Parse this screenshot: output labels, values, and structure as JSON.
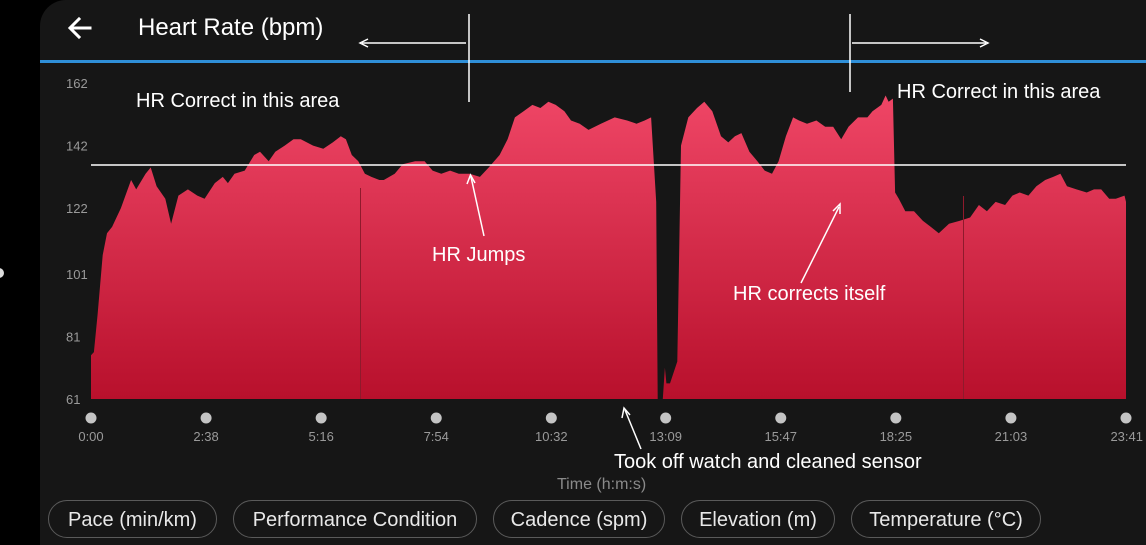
{
  "header": {
    "title": "Heart Rate (bpm)",
    "back_icon": "arrow-left-icon",
    "accent_color": "#2f8fd8"
  },
  "chart_data": {
    "type": "area",
    "x_unit": "minutes",
    "xlim": [
      0,
      1421
    ],
    "ylim": [
      61,
      162
    ],
    "yticks": [
      "162",
      "142",
      "122",
      "101",
      "81",
      "61"
    ],
    "ytick_values": [
      162,
      142,
      122,
      101,
      81,
      61
    ],
    "xticks": [
      "0:00",
      "2:38",
      "5:16",
      "7:54",
      "10:32",
      "13:09",
      "15:47",
      "18:25",
      "21:03",
      "23:41"
    ],
    "xtick_values": [
      0,
      158,
      316,
      474,
      632,
      789,
      947,
      1105,
      1263,
      1421
    ],
    "xlabel": "Time (h:m:s)",
    "fill_top": "#ef4666",
    "fill_bottom": "#b8102c",
    "reference_line_y": 135.8,
    "series": [
      {
        "values": [
          [
            0,
            75
          ],
          [
            4,
            76
          ],
          [
            9,
            88
          ],
          [
            16,
            107
          ],
          [
            22,
            114
          ],
          [
            29,
            116
          ],
          [
            41,
            122
          ],
          [
            55,
            131
          ],
          [
            62,
            128
          ],
          [
            75,
            133
          ],
          [
            82,
            135
          ],
          [
            90,
            129
          ],
          [
            102,
            125
          ],
          [
            110,
            117
          ],
          [
            120,
            126
          ],
          [
            133,
            128
          ],
          [
            146,
            126
          ],
          [
            156,
            125
          ],
          [
            170,
            130
          ],
          [
            181,
            132
          ],
          [
            188,
            130
          ],
          [
            197,
            133
          ],
          [
            211,
            134
          ],
          [
            224,
            139
          ],
          [
            232,
            140
          ],
          [
            244,
            137
          ],
          [
            253,
            140
          ],
          [
            266,
            142
          ],
          [
            278,
            144
          ],
          [
            288,
            144
          ],
          [
            305,
            142
          ],
          [
            319,
            141
          ],
          [
            332,
            143
          ],
          [
            343,
            145
          ],
          [
            350,
            144
          ],
          [
            358,
            139
          ],
          [
            367,
            137
          ],
          [
            376,
            133
          ],
          [
            385,
            132
          ],
          [
            396,
            131
          ],
          [
            402,
            131
          ],
          [
            417,
            133
          ],
          [
            428,
            136
          ],
          [
            445,
            137
          ],
          [
            458,
            137
          ],
          [
            469,
            134
          ],
          [
            481,
            133
          ],
          [
            493,
            134
          ],
          [
            505,
            133
          ],
          [
            520,
            133
          ],
          [
            534,
            132
          ],
          [
            546,
            135
          ],
          [
            561,
            139
          ],
          [
            572,
            144
          ],
          [
            582,
            151
          ],
          [
            594,
            153
          ],
          [
            606,
            155
          ],
          [
            617,
            154
          ],
          [
            628,
            156
          ],
          [
            638,
            155
          ],
          [
            650,
            153
          ],
          [
            659,
            150
          ],
          [
            671,
            149
          ],
          [
            683,
            147
          ],
          [
            700,
            149
          ],
          [
            719,
            151
          ],
          [
            736,
            150
          ],
          [
            749,
            149
          ],
          [
            760,
            150
          ],
          [
            769,
            151
          ],
          [
            776,
            124
          ],
          [
            778,
            61
          ],
          [
            785,
            61
          ],
          [
            788,
            71
          ],
          [
            790,
            66
          ],
          [
            795,
            66
          ],
          [
            805,
            73
          ],
          [
            810,
            142
          ],
          [
            820,
            151
          ],
          [
            832,
            154
          ],
          [
            842,
            156
          ],
          [
            853,
            153
          ],
          [
            865,
            145
          ],
          [
            875,
            143
          ],
          [
            884,
            145
          ],
          [
            893,
            146
          ],
          [
            904,
            140
          ],
          [
            915,
            137
          ],
          [
            925,
            134
          ],
          [
            935,
            133
          ],
          [
            944,
            137
          ],
          [
            954,
            145
          ],
          [
            964,
            151
          ],
          [
            972,
            150
          ],
          [
            983,
            149
          ],
          [
            996,
            150
          ],
          [
            1008,
            148
          ],
          [
            1019,
            148
          ],
          [
            1030,
            144
          ],
          [
            1040,
            148
          ],
          [
            1053,
            151
          ],
          [
            1066,
            151
          ],
          [
            1073,
            153
          ],
          [
            1085,
            155
          ],
          [
            1091,
            158
          ],
          [
            1095,
            156
          ],
          [
            1101,
            157
          ],
          [
            1104,
            127
          ],
          [
            1109,
            125
          ],
          [
            1118,
            121
          ],
          [
            1130,
            121
          ],
          [
            1142,
            118
          ],
          [
            1153,
            116
          ],
          [
            1164,
            114
          ],
          [
            1178,
            117
          ],
          [
            1193,
            118
          ],
          [
            1207,
            119
          ],
          [
            1219,
            123
          ],
          [
            1230,
            121
          ],
          [
            1242,
            124
          ],
          [
            1255,
            123
          ],
          [
            1265,
            126
          ],
          [
            1275,
            127
          ],
          [
            1287,
            126
          ],
          [
            1298,
            129
          ],
          [
            1310,
            131
          ],
          [
            1321,
            132
          ],
          [
            1331,
            133
          ],
          [
            1340,
            129
          ],
          [
            1353,
            128
          ],
          [
            1367,
            127
          ],
          [
            1377,
            128
          ],
          [
            1387,
            128
          ],
          [
            1398,
            125
          ],
          [
            1407,
            125
          ],
          [
            1419,
            126
          ],
          [
            1421,
            124
          ]
        ]
      }
    ],
    "annotations": [
      {
        "id": "hr_correct_left",
        "text": "HR Correct in this area"
      },
      {
        "id": "hr_correct_right",
        "text": "HR Correct in this area"
      },
      {
        "id": "hr_jumps",
        "text": "HR Jumps"
      },
      {
        "id": "hr_corrects_itself",
        "text": "HR corrects itself"
      },
      {
        "id": "took_off_watch",
        "text": "Took off watch and cleaned sensor"
      }
    ]
  },
  "metric_tabs": [
    {
      "label": "Pace (min/km)"
    },
    {
      "label": "Performance Condition"
    },
    {
      "label": "Cadence (spm)"
    },
    {
      "label": "Elevation (m)"
    },
    {
      "label": "Temperature (°C)"
    }
  ]
}
